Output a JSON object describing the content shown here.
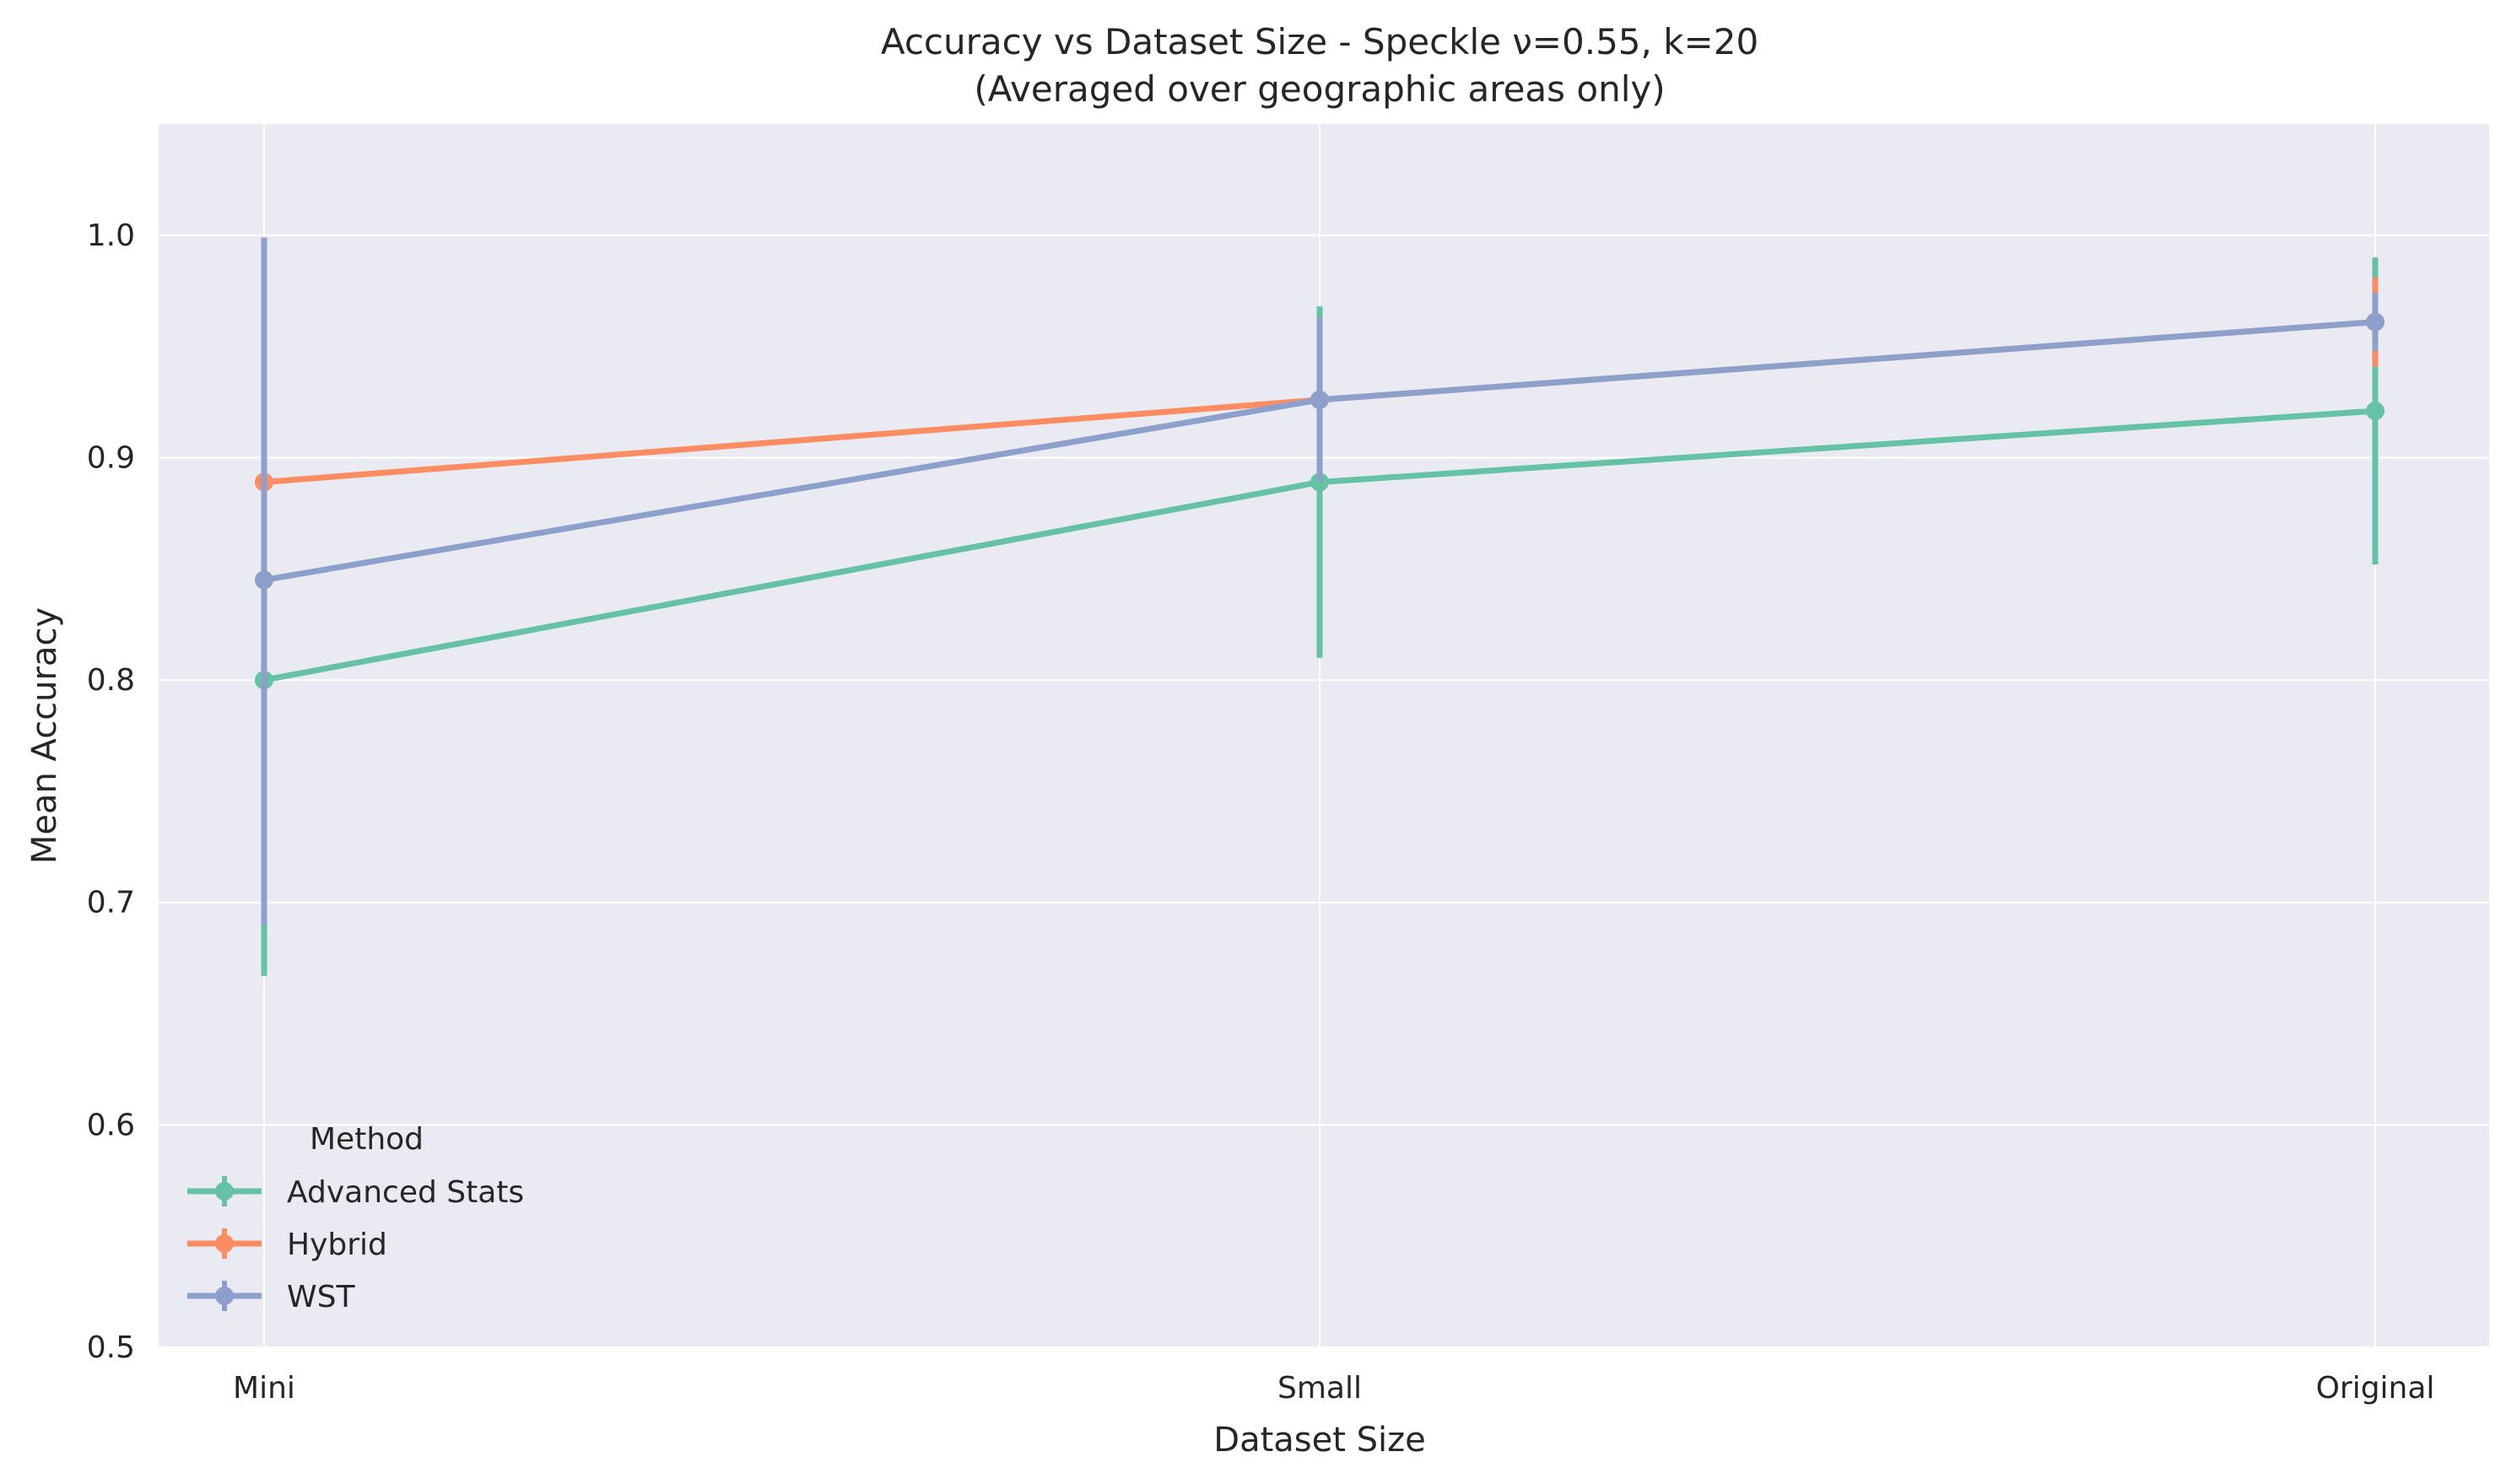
{
  "chart_data": {
    "type": "line",
    "title": "Accuracy vs Dataset Size - Speckle ν=0.55, k=20",
    "subtitle": "(Averaged over geographic areas only)",
    "xlabel": "Dataset Size",
    "ylabel": "Mean Accuracy",
    "categories": [
      "Mini",
      "Small",
      "Original"
    ],
    "ylim": [
      0.5,
      1.05
    ],
    "yticks": [
      "0.5",
      "0.6",
      "0.7",
      "0.8",
      "0.9",
      "1.0"
    ],
    "grid": true,
    "legend": {
      "title": "Method",
      "placement": "bottom-left"
    },
    "series": [
      {
        "name": "Advanced Stats",
        "color": "#66c2a5",
        "values": [
          0.8,
          0.889,
          0.921
        ],
        "err_low": [
          0.667,
          0.81,
          0.852
        ],
        "err_high": [
          0.933,
          0.968,
          0.99
        ]
      },
      {
        "name": "Hybrid",
        "color": "#fc8d62",
        "values": [
          0.889,
          0.926,
          0.961
        ],
        "err_low": [
          0.889,
          0.926,
          0.941
        ],
        "err_high": [
          0.889,
          0.926,
          0.981
        ]
      },
      {
        "name": "WST",
        "color": "#8da0cb",
        "values": [
          0.845,
          0.926,
          0.961
        ],
        "err_low": [
          0.69,
          0.889,
          0.948
        ],
        "err_high": [
          0.999,
          0.963,
          0.974
        ]
      }
    ]
  }
}
